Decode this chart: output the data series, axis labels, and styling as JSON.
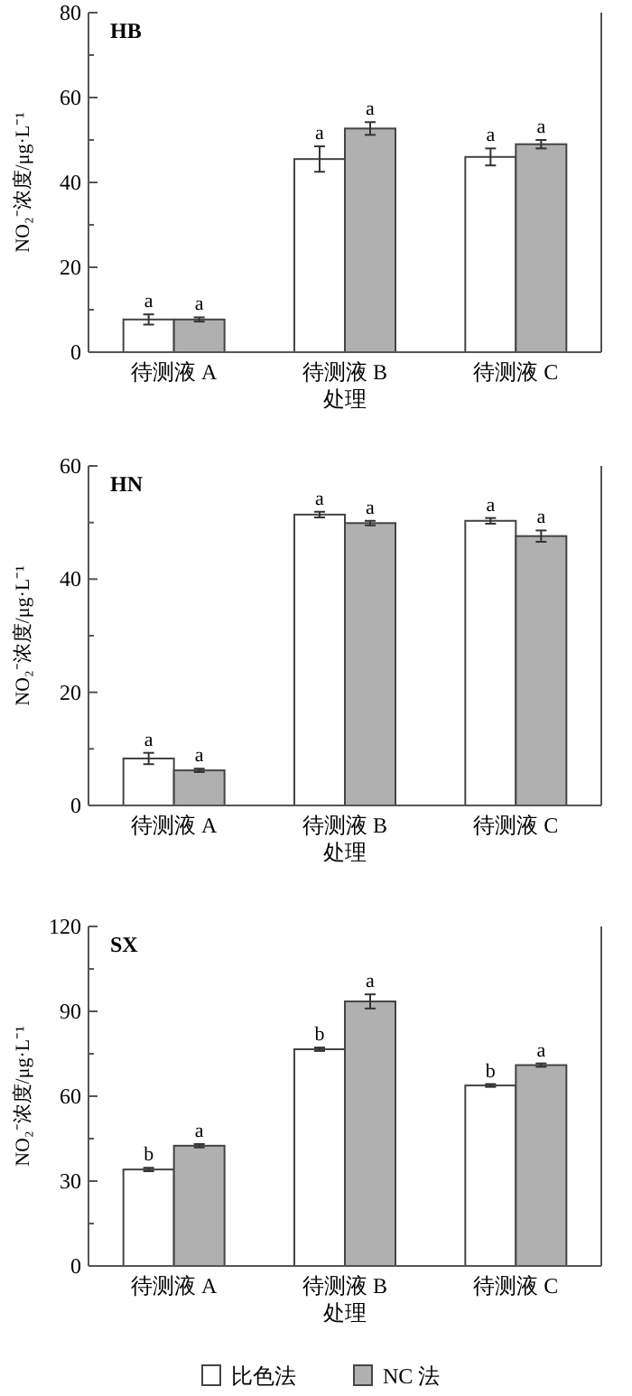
{
  "chart_data": [
    {
      "type": "bar",
      "title": "HB",
      "xlabel": "处理",
      "ylabel": "NO₂⁻浓度/μg·L⁻¹",
      "categories": [
        "待测液 A",
        "待测液 B",
        "待测液 C"
      ],
      "ylim": [
        0,
        80
      ],
      "yticks": [
        0,
        20,
        40,
        60,
        80
      ],
      "legend": false,
      "grid": false,
      "series": [
        {
          "color": "#ffffff",
          "values": [
            7.7,
            45.5,
            46
          ],
          "errors": [
            1.2,
            3,
            2
          ],
          "value_labels": [
            "a",
            "a",
            "a"
          ]
        },
        {
          "color": "#b0b0b0",
          "values": [
            7.7,
            52.7,
            49
          ],
          "errors": [
            0.5,
            1.5,
            1
          ],
          "value_labels": [
            "a",
            "a",
            "a"
          ]
        }
      ]
    },
    {
      "type": "bar",
      "title": "HN",
      "xlabel": "处理",
      "ylabel": "NO₂⁻浓度/μg·L⁻¹",
      "categories": [
        "待测液 A",
        "待测液 B",
        "待测液 C"
      ],
      "ylim": [
        0,
        60
      ],
      "yticks": [
        0,
        20,
        40,
        60
      ],
      "legend": false,
      "grid": false,
      "series": [
        {
          "color": "#ffffff",
          "values": [
            8.3,
            51.4,
            50.3
          ],
          "errors": [
            1,
            0.5,
            0.5
          ],
          "value_labels": [
            "a",
            "a",
            "a"
          ]
        },
        {
          "color": "#b0b0b0",
          "values": [
            6.2,
            49.9,
            47.6
          ],
          "errors": [
            0.3,
            0.4,
            1
          ],
          "value_labels": [
            "a",
            "a",
            "a"
          ]
        }
      ]
    },
    {
      "type": "bar",
      "title": "SX",
      "xlabel": "处理",
      "ylabel": "NO₂⁻浓度/μg·L⁻¹",
      "categories": [
        "待测液 A",
        "待测液 B",
        "待测液 C"
      ],
      "ylim": [
        0,
        120
      ],
      "yticks": [
        0,
        30,
        60,
        90,
        120
      ],
      "legend": "bottom",
      "grid": false,
      "series": [
        {
          "name": "比色法",
          "color": "#ffffff",
          "values": [
            34.1,
            76.6,
            63.8
          ],
          "errors": [
            0.6,
            0.6,
            0.5
          ],
          "value_labels": [
            "b",
            "b",
            "b"
          ]
        },
        {
          "name": "NC 法",
          "color": "#b0b0b0",
          "values": [
            42.5,
            93.5,
            71
          ],
          "errors": [
            0.6,
            2.5,
            0.6
          ],
          "value_labels": [
            "a",
            "a",
            "a"
          ]
        }
      ]
    }
  ]
}
